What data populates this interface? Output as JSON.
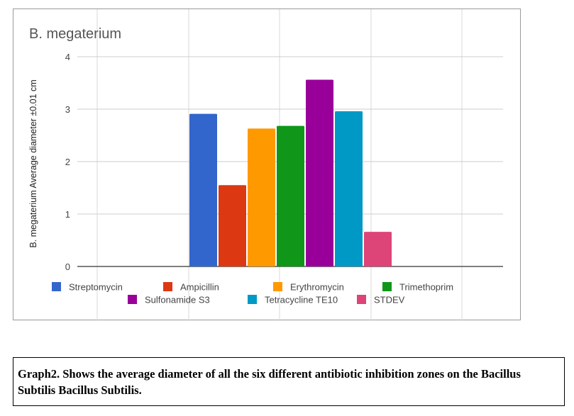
{
  "chart_data": {
    "type": "bar",
    "title": "B. megaterium",
    "ylabel": "B. megaterium Average diameter ±0.01 cm",
    "xlabel": "",
    "ylim": [
      0,
      4
    ],
    "yticks": [
      0,
      1,
      2,
      3,
      4
    ],
    "grid": true,
    "legend_position": "bottom",
    "series": [
      {
        "name": "Streptomycin",
        "value": 2.91,
        "color": "#3366cc"
      },
      {
        "name": "Ampicillin",
        "value": 1.55,
        "color": "#dc3912"
      },
      {
        "name": "Erythromycin",
        "value": 2.63,
        "color": "#ff9900"
      },
      {
        "name": "Trimethoprim",
        "value": 2.68,
        "color": "#109618"
      },
      {
        "name": "Sulfonamide S3",
        "value": 3.56,
        "color": "#990099"
      },
      {
        "name": "Tetracycline TE10",
        "value": 2.96,
        "color": "#0099c6"
      },
      {
        "name": "STDEV",
        "value": 0.66,
        "color": "#dd4477"
      }
    ]
  },
  "caption": "Graph2. Shows the average diameter of all the six different antibiotic inhibition zones on the Bacillus Subtilis Bacillus Subtilis."
}
